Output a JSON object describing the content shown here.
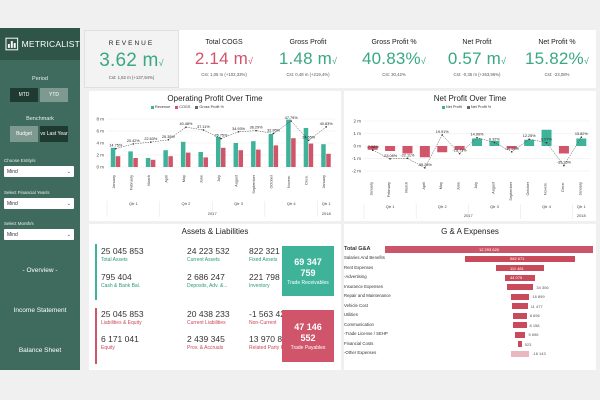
{
  "brand": {
    "name": "METRICALIST"
  },
  "sidebar": {
    "period_label": "Period",
    "period_options": [
      "MTD",
      "YTD"
    ],
    "benchmark_label": "Benchmark",
    "benchmark_options": [
      "Budget",
      "vs Last Year"
    ],
    "selects": [
      {
        "label": "Choose Entity/s",
        "value": "Mind"
      },
      {
        "label": "Select Financial Year/s",
        "value": "Mind"
      },
      {
        "label": "Select Month/s",
        "value": "Mind"
      }
    ],
    "nav": [
      "- Overview -",
      "Income Statement",
      "Balance Sheet"
    ]
  },
  "kpis": [
    {
      "title": "REVENUE",
      "value": "3.62 m",
      "sub": "Cst: 1,52 m (+137,94%)"
    },
    {
      "title": "Total COGS",
      "value": "2.14 m",
      "sub": "Cst: 1,05 m (+102,33%)"
    },
    {
      "title": "Gross Profit",
      "value": "1.48 m",
      "sub": "Cst: 0,48 m (+219,4%)"
    },
    {
      "title": "Gross Profit %",
      "value": "40.83%",
      "sub": "Cst: 30,42%"
    },
    {
      "title": "Net Profit",
      "value": "0.57 m",
      "sub": "Cst: -0,35 m (+263,96%)"
    },
    {
      "title": "Net Profit %",
      "value": "15.82%",
      "sub": "Cst: -23,08%"
    }
  ],
  "colors": {
    "teal": "#3fb39a",
    "red": "#d0546a",
    "green_kpi": "#3aa882",
    "sidebar": "#3e6b5d"
  },
  "chart_data": [
    {
      "type": "bar",
      "title": "Operating Profit Over Time",
      "legend": [
        "Revenue",
        "COGS",
        "Gross Profit %"
      ],
      "categories": [
        "January",
        "February",
        "March",
        "April",
        "May",
        "June",
        "July",
        "August",
        "September",
        "October",
        "Novem.",
        "Dece.",
        "January"
      ],
      "quarters": [
        "Qtr 1",
        "Qtr 2",
        "Qtr 3",
        "Qtr 4",
        "Qtr 1"
      ],
      "years": [
        "2017",
        "2018"
      ],
      "yticks": [
        "0 m",
        "2 m",
        "4 m",
        "6 m",
        "8 m"
      ],
      "ylim": [
        0,
        9
      ],
      "series": [
        {
          "name": "Revenue",
          "values": [
            3.2,
            2.6,
            1.5,
            2.8,
            4.2,
            2.5,
            5.0,
            4.0,
            4.3,
            5.5,
            7.9,
            6.5,
            3.8
          ]
        },
        {
          "name": "COGS",
          "values": [
            1.8,
            1.5,
            1.2,
            1.8,
            2.4,
            1.6,
            3.2,
            2.8,
            2.9,
            3.6,
            4.8,
            3.9,
            2.2
          ]
        }
      ],
      "pct_labels": [
        "14.75%",
        "20.42%",
        "22.63%",
        "25.35%",
        "40.48%",
        "37.11%",
        "26.75%",
        "34.93%",
        "36.29%",
        "32.95%",
        "47.79%",
        "24.65%",
        "40.83%"
      ],
      "pct_values": [
        14.75,
        20.42,
        22.63,
        25.35,
        40.48,
        37.11,
        26.75,
        34.93,
        36.29,
        32.95,
        47.79,
        24.65,
        40.83
      ]
    },
    {
      "type": "bar",
      "title": "Net Profit Over Time",
      "legend": [
        "Net Profit",
        "Net Profit %"
      ],
      "categories": [
        "January",
        "February",
        "March",
        "April",
        "May",
        "June",
        "July",
        "August",
        "September",
        "October",
        "Novem.",
        "Dece.",
        "January"
      ],
      "quarters": [
        "Qtr 1",
        "Qtr 2",
        "Qtr 3",
        "Qtr 4",
        "Qtr 1"
      ],
      "years": [
        "2017",
        "2018"
      ],
      "yticks": [
        "2 m",
        "1 m",
        "0 m",
        "-1 m",
        "-2 m"
      ],
      "ylim": [
        -2,
        2
      ],
      "values": [
        -0.3,
        -0.4,
        -0.6,
        -0.9,
        -0.5,
        -0.3,
        0.6,
        0.4,
        -0.2,
        0.5,
        1.3,
        -0.6,
        0.6
      ],
      "pct_labels": [
        "-7.58%",
        "-23.08%",
        "-22.11%",
        "-39.28%",
        "19.91%",
        "-13.73%",
        "14.99%",
        "6.32%",
        "-10.54%",
        "12.25%",
        "6.07%",
        "-35.26%",
        "15.82%"
      ],
      "pct_values": [
        -7.58,
        -23.08,
        -22.11,
        -39.28,
        19.91,
        -13.73,
        14.99,
        6.32,
        -10.54,
        12.25,
        6.07,
        -35.26,
        15.82
      ]
    }
  ],
  "assets": {
    "title": "Assets & Liabilities",
    "top": [
      {
        "value": "25 045 853",
        "label": "Total Assets"
      },
      {
        "value": "24 223 532",
        "label": "Current Assets"
      },
      {
        "value": "822 321",
        "label": "Fixed Assets"
      },
      {
        "value": "795 404",
        "label": "Cash & Bank Bal."
      },
      {
        "value": "2 686 247",
        "label": "Deposits, Adv. &..."
      },
      {
        "value": "221 798",
        "label": "Inventory"
      }
    ],
    "bottom": [
      {
        "value": "25 045 853",
        "label": "Liabilities & Equity"
      },
      {
        "value": "20 438 233",
        "label": "Current Liabilities"
      },
      {
        "value": "-1 563 422",
        "label": "Non-Current"
      },
      {
        "value": "6 171 041",
        "label": "Equity"
      },
      {
        "value": "2 439 345",
        "label": "Prov. & Accruals"
      },
      {
        "value": "13 970 814",
        "label": "Related Party Pybl"
      }
    ],
    "receivables": {
      "line1": "69 347",
      "line2": "759",
      "label": "Trade Receivables"
    },
    "payables": {
      "line1": "47 146",
      "line2": "552",
      "label": "Trade Payables"
    }
  },
  "ga": {
    "title": "G & A Expenses",
    "rows": [
      {
        "label": "Total G&A",
        "value": "12 293 620",
        "amount": 12293620
      },
      {
        "label": "Salaries And Benefits",
        "value": "582 671",
        "amount": 582671
      },
      {
        "label": "Rent Expenses",
        "value": "111 481",
        "amount": 111481
      },
      {
        "label": "-Advertising",
        "value": "44 075",
        "amount": 44075
      },
      {
        "label": "Insurance Expenses",
        "value": "34 306",
        "amount": 34306
      },
      {
        "label": "Repair and Maintenance",
        "value": "16 899",
        "amount": 16899
      },
      {
        "label": "Vehicle Cost",
        "value": "11 477",
        "amount": 11477
      },
      {
        "label": "Utilities",
        "value": "8 696",
        "amount": 8696
      },
      {
        "label": "Communication",
        "value": "8 158",
        "amount": 8158
      },
      {
        "label": "-Trade License / SEHP",
        "value": "5 696",
        "amount": 5696
      },
      {
        "label": "Financial Costs",
        "value": "523",
        "amount": 523
      },
      {
        "label": "-Other Expenses",
        "value": "-16 143",
        "amount": -16143
      }
    ]
  }
}
